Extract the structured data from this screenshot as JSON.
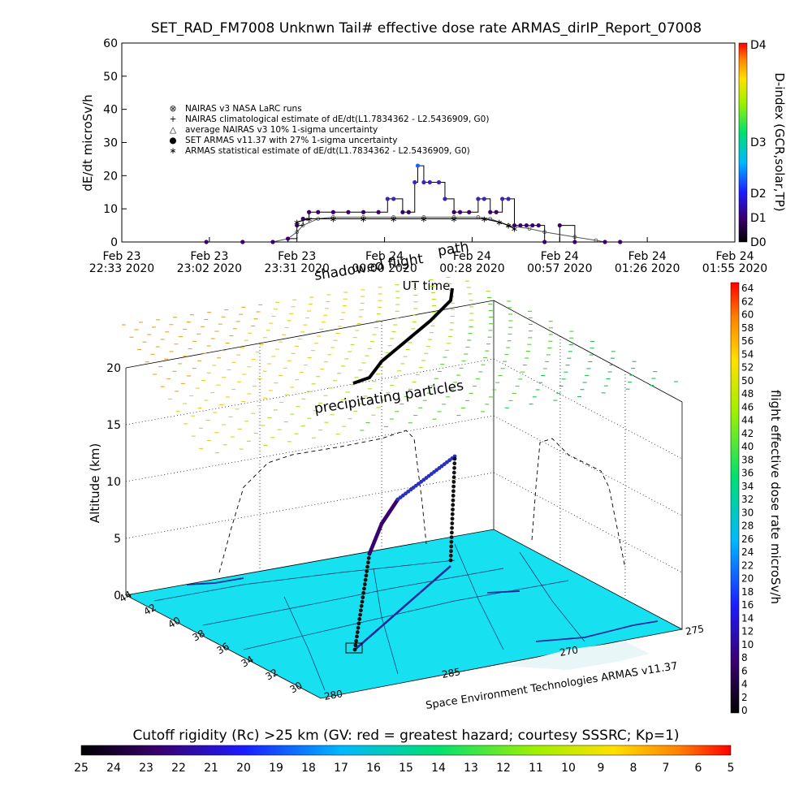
{
  "title": "SET_RAD_FM7008   Unknwn Tail#   effective dose rate ARMAS_dirIP_Report_07008",
  "chart_data": [
    {
      "type": "line",
      "id": "timeseries",
      "ylabel": "dE/dt microSv/h",
      "xlabel": "UT time",
      "ylim": [
        0,
        60
      ],
      "yticks": [
        "0",
        "10",
        "20",
        "30",
        "40",
        "50",
        "60"
      ],
      "xticks": [
        {
          "line1": "Feb 23",
          "line2": "22:33 2020"
        },
        {
          "line1": "Feb 23",
          "line2": "23:02 2020"
        },
        {
          "line1": "Feb 23",
          "line2": "23:31 2020"
        },
        {
          "line1": "Feb 24",
          "line2": "00:00 2020"
        },
        {
          "line1": "Feb 24",
          "line2": "00:28 2020"
        },
        {
          "line1": "Feb 24",
          "line2": "00:57 2020"
        },
        {
          "line1": "Feb 24",
          "line2": "01:26 2020"
        },
        {
          "line1": "Feb 24",
          "line2": "01:55 2020"
        }
      ],
      "xmin_minutes": 0,
      "xmax_minutes": 203,
      "right_axis": {
        "label": "D-index (GCR,solar,TP)",
        "ticks": [
          "D0",
          "D1",
          "D2",
          "D3",
          "D4"
        ]
      },
      "legend": [
        "NAIRAS v3 NASA LaRC runs",
        "NAIRAS climatological estimate of dE/dt(L1.7834362 - L2.5436909, G0)",
        "average NAIRAS v3 10% 1-sigma uncertainty",
        "SET ARMAS v11.37 with 27% 1-sigma uncertainty",
        "ARMAS statistical estimate of dE/dt(L1.7834362 - L2.5436909, G0)"
      ],
      "legend_symbols": [
        "⊗",
        "+",
        "△",
        "●",
        "∗"
      ],
      "series": [
        {
          "name": "NAIRAS v3 NASA LaRC runs",
          "x": [
            28,
            40,
            50,
            55,
            58,
            60,
            65,
            70,
            80,
            90,
            100,
            110,
            118,
            122,
            128,
            135,
            140,
            150,
            157,
            160
          ],
          "y": [
            0,
            0,
            0,
            1,
            3,
            5,
            7,
            7.5,
            7.5,
            7.5,
            7.5,
            7.5,
            7.5,
            7,
            5,
            4,
            3,
            1.5,
            0.5,
            0
          ]
        },
        {
          "name": "SET ARMAS v11.37 with 27% 1-sigma uncertainty",
          "x": [
            28,
            40,
            50,
            55,
            58,
            60,
            62,
            65,
            70,
            75,
            80,
            85,
            88,
            90,
            93,
            95,
            97,
            98,
            100,
            102,
            105,
            107,
            110,
            112,
            115,
            118,
            120,
            122,
            124,
            126,
            128,
            130,
            132,
            134,
            136,
            138,
            140,
            145,
            150,
            160,
            165
          ],
          "y": [
            0,
            0,
            0,
            1,
            5,
            7,
            9,
            9,
            9,
            9,
            9,
            9,
            13,
            13,
            9,
            9,
            18,
            23,
            18,
            18,
            18,
            13,
            9,
            9,
            9,
            13,
            13,
            9,
            9,
            13,
            13,
            5,
            5,
            5,
            5,
            5,
            0,
            5,
            0,
            0,
            0
          ]
        },
        {
          "name": "ARMAS statistical estimate of dE/dt(L1.7834362 - L2.5436909, G0)",
          "x": [
            58,
            62,
            70,
            80,
            90,
            100,
            110,
            120,
            125,
            128,
            130
          ],
          "y": [
            6,
            7,
            7,
            7,
            7,
            7,
            7,
            7,
            6,
            5,
            4
          ]
        }
      ]
    },
    {
      "type": "scatter3d",
      "id": "trajectory",
      "zlabel": "Altitude (km)",
      "zticks": [
        "0",
        "5",
        "10",
        "15",
        "20"
      ],
      "lat_ticks": [
        "44",
        "42",
        "40",
        "38",
        "36",
        "34",
        "32",
        "30"
      ],
      "lon_ticks": [
        "280",
        "285",
        "270",
        "275"
      ],
      "annotations": [
        "precipitating particles",
        "shadowed flight",
        "path"
      ],
      "vendor_label": "Space Environment Technologies ARMAS v11.37",
      "colorbar": {
        "label": "flight effective dose rate microSv/h",
        "ticks": [
          "0",
          "2",
          "4",
          "6",
          "8",
          "10",
          "12",
          "14",
          "16",
          "18",
          "20",
          "22",
          "24",
          "26",
          "28",
          "30",
          "32",
          "34",
          "36",
          "38",
          "40",
          "42",
          "44",
          "46",
          "48",
          "50",
          "52",
          "54",
          "56",
          "58",
          "60",
          "62",
          "64"
        ]
      }
    },
    {
      "type": "colorbar",
      "id": "cutoff",
      "title": "Cutoff rigidity (Rc) >25 km (GV: red = greatest hazard; courtesy SSSRC; Kp=1)",
      "ticks": [
        "25",
        "24",
        "23",
        "22",
        "21",
        "20",
        "19",
        "18",
        "17",
        "16",
        "15",
        "14",
        "13",
        "12",
        "11",
        "10",
        "9",
        "8",
        "7",
        "6",
        "5"
      ]
    }
  ],
  "colors": {
    "map_fill": "#17e0f0",
    "flight_path": "#1a2a9a",
    "background": "#ffffff"
  }
}
